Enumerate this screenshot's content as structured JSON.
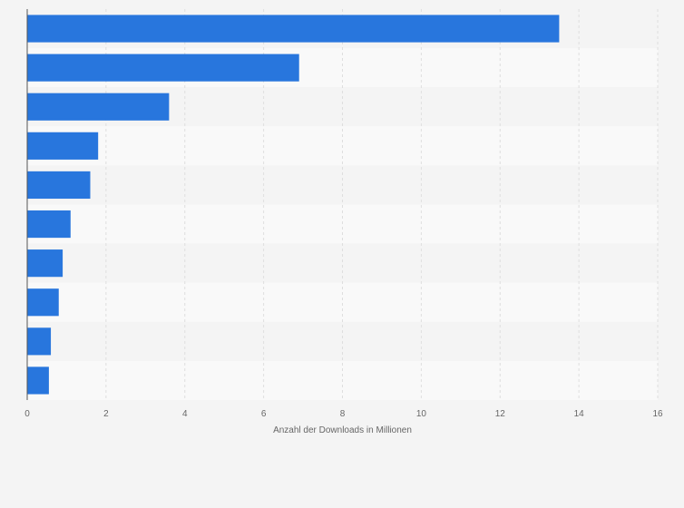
{
  "chart_data": {
    "type": "bar",
    "orientation": "horizontal",
    "title": "",
    "xlabel": "Anzahl der Downloads in Millionen",
    "ylabel": "",
    "xlim": [
      0,
      16
    ],
    "x_ticks": [
      0,
      2,
      4,
      6,
      8,
      10,
      12,
      14,
      16
    ],
    "category_labels_visible": false,
    "values": [
      13.5,
      6.9,
      3.6,
      1.8,
      1.6,
      1.1,
      0.9,
      0.8,
      0.6,
      0.55
    ],
    "grid": "vertical",
    "legend": "none",
    "colors": {
      "bar": "#2876dd",
      "page_background": "#f4f4f4",
      "band_dark": "#f4f4f4",
      "band_light": "#f9f9f9",
      "gridline": "#dedede",
      "axis": "#555555",
      "text": "#666666"
    }
  }
}
